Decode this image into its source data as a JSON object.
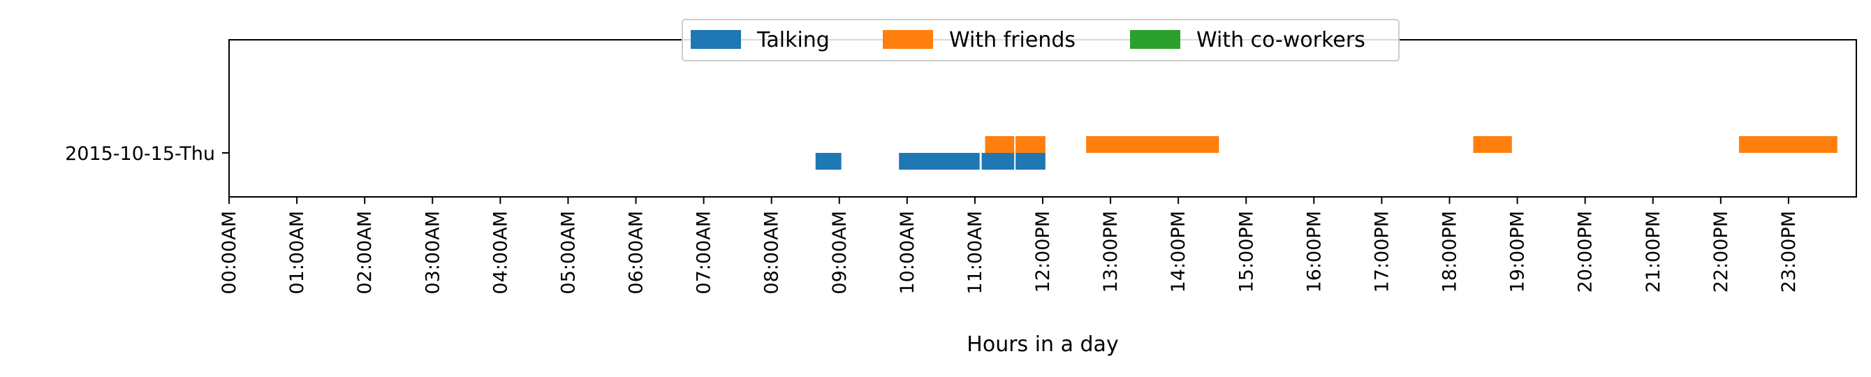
{
  "chart_data": {
    "type": "bar",
    "orientation": "horizontal-timeline",
    "title": "",
    "xlabel": "Hours in a day",
    "ylabel": "",
    "xlim": [
      0,
      24
    ],
    "categories": [
      "2015-10-15-Thu"
    ],
    "x_tick_labels": [
      "00:00AM",
      "01:00AM",
      "02:00AM",
      "03:00AM",
      "04:00AM",
      "05:00AM",
      "06:00AM",
      "07:00AM",
      "08:00AM",
      "09:00AM",
      "10:00AM",
      "11:00AM",
      "12:00PM",
      "13:00PM",
      "14:00PM",
      "15:00PM",
      "16:00PM",
      "17:00PM",
      "18:00PM",
      "19:00PM",
      "20:00PM",
      "21:00PM",
      "22:00PM",
      "23:00PM"
    ],
    "grid": false,
    "legend_position": "top-center",
    "series": [
      {
        "name": "Talking",
        "color": "#1f77b4",
        "intervals": [
          {
            "start": 8.65,
            "end": 9.03
          },
          {
            "start": 9.88,
            "end": 11.07
          },
          {
            "start": 11.1,
            "end": 11.58
          },
          {
            "start": 11.6,
            "end": 12.04
          }
        ]
      },
      {
        "name": "With friends",
        "color": "#ff7f0e",
        "intervals": [
          {
            "start": 11.15,
            "end": 11.58
          },
          {
            "start": 11.6,
            "end": 12.04
          },
          {
            "start": 12.64,
            "end": 14.6
          },
          {
            "start": 18.35,
            "end": 18.92
          },
          {
            "start": 22.27,
            "end": 23.72
          }
        ]
      },
      {
        "name": "With co-workers",
        "color": "#2ca02c",
        "intervals": []
      }
    ]
  }
}
